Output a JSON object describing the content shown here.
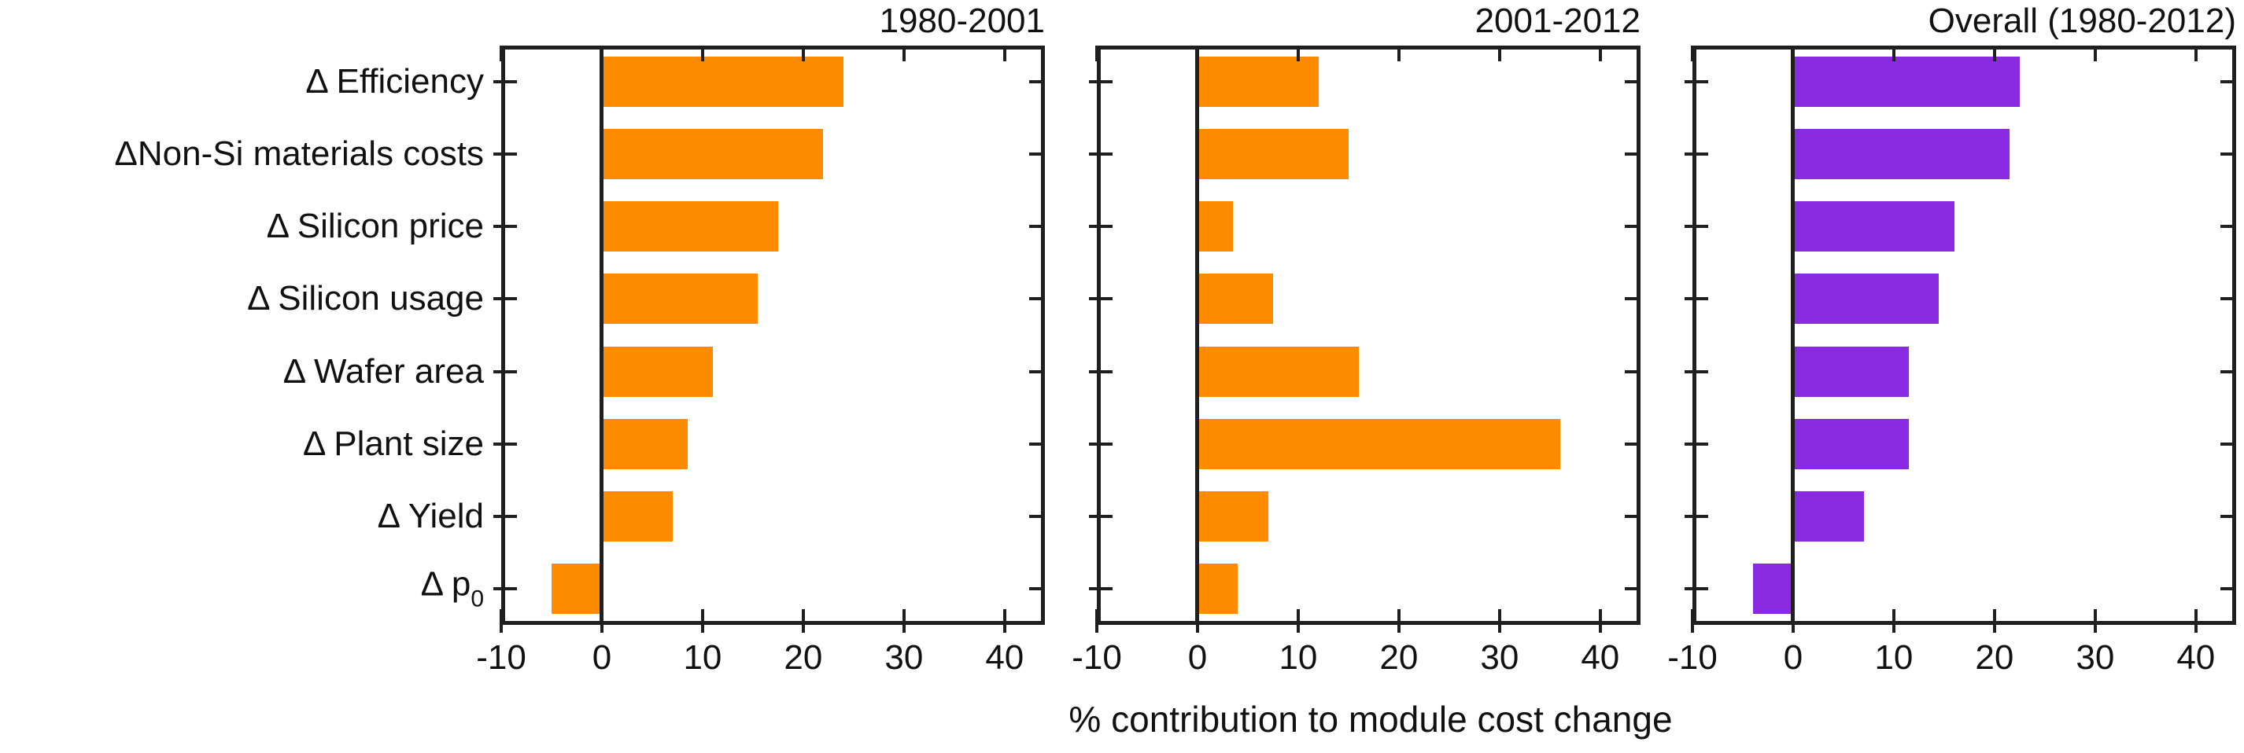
{
  "chart_data": {
    "type": "bar",
    "orientation": "horizontal",
    "title": "",
    "xlabel": "% contribution to module cost change",
    "ylabel": "",
    "xlim": [
      -10,
      44
    ],
    "xticks": [
      -10,
      0,
      10,
      20,
      30,
      40
    ],
    "grid": false,
    "legend_position": "none (each panel titled above-right)",
    "categories": [
      {
        "label": "Δ Efficiency",
        "sub": ""
      },
      {
        "label": "ΔNon-Si materials costs",
        "sub": ""
      },
      {
        "label": "Δ Silicon price",
        "sub": ""
      },
      {
        "label": "Δ Silicon usage",
        "sub": ""
      },
      {
        "label": "Δ Wafer area",
        "sub": ""
      },
      {
        "label": "Δ Plant size",
        "sub": ""
      },
      {
        "label": "Δ Yield",
        "sub": ""
      },
      {
        "label": "Δ p",
        "sub": "0"
      }
    ],
    "series": [
      {
        "name": "1980-2001",
        "color": "#FF8C00",
        "values": [
          24,
          22,
          17.5,
          15.5,
          11,
          8.5,
          7,
          -5
        ]
      },
      {
        "name": "2001-2012",
        "color": "#FF8C00",
        "values": [
          12,
          15,
          3.5,
          7.5,
          16,
          36,
          7,
          4
        ]
      },
      {
        "name": "Overall (1980-2012)",
        "color": "#8A2BE2",
        "values": [
          22.5,
          21.5,
          16,
          14.5,
          11.5,
          11.5,
          7,
          -4
        ]
      }
    ],
    "axis_color": "#1f1f1f",
    "text_color": "#111111",
    "background_color": "#ffffff"
  }
}
